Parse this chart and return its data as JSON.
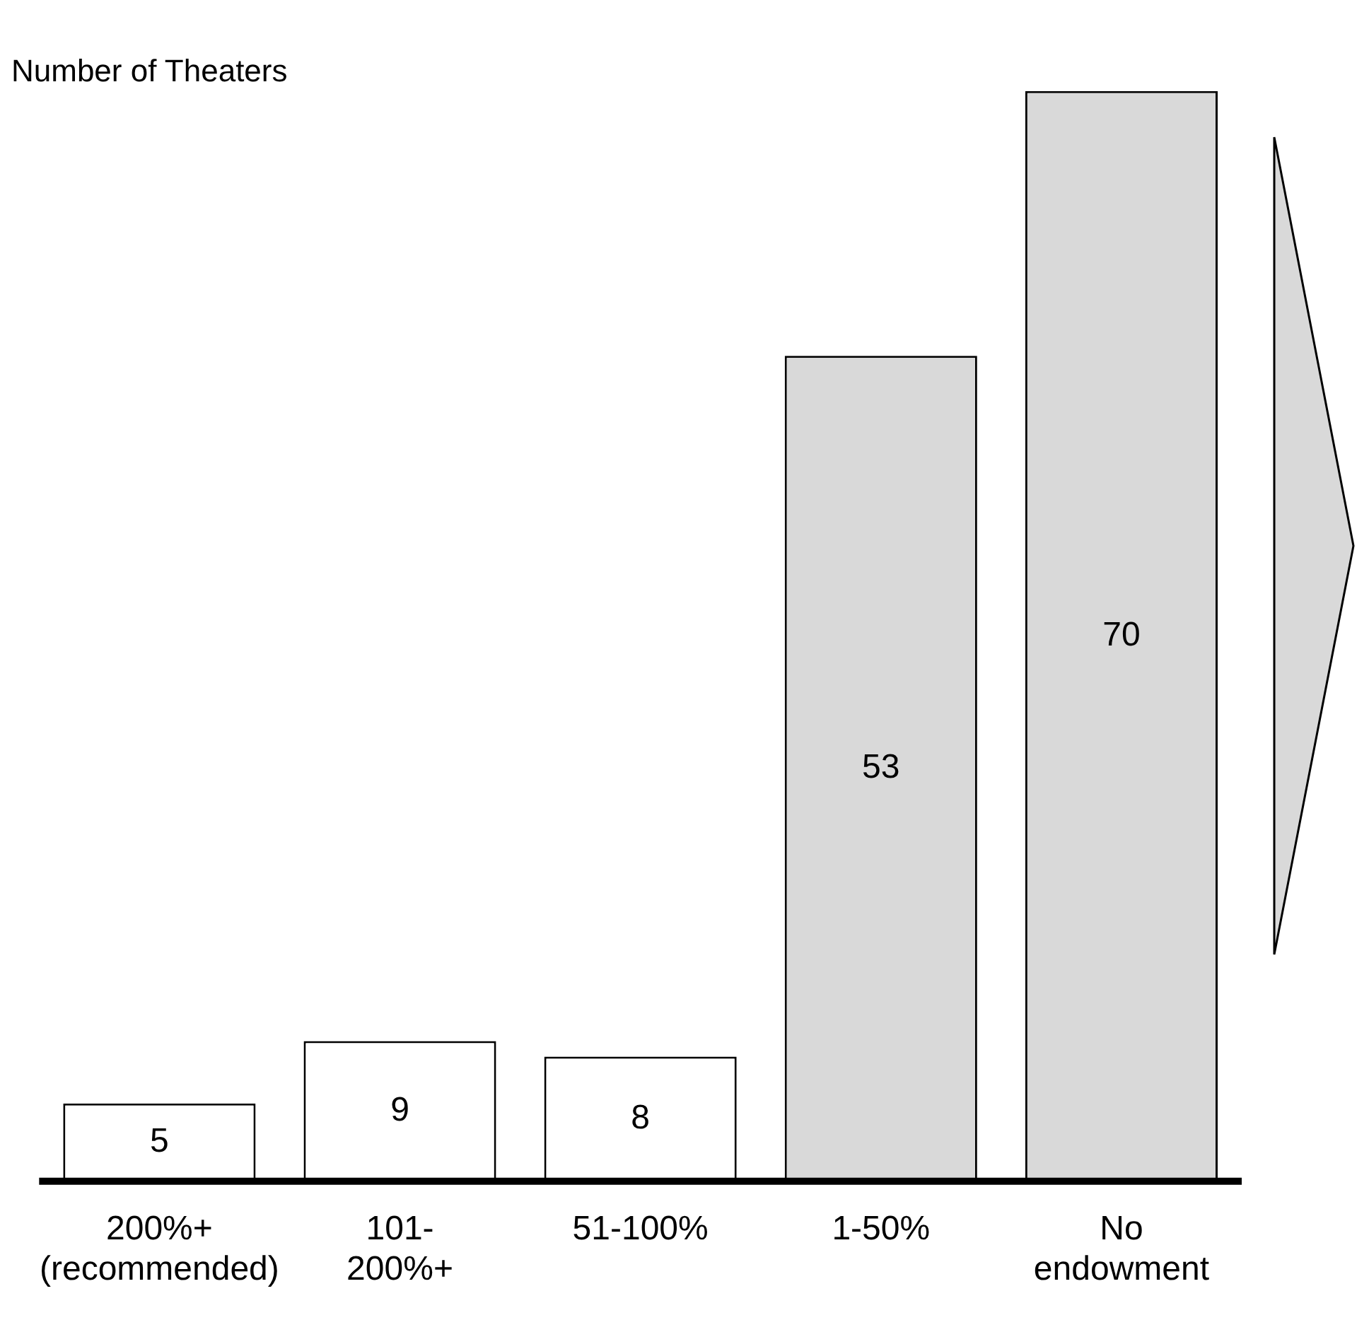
{
  "chart_data": {
    "type": "bar",
    "title": "Number of Theaters",
    "categories": [
      "200%+\n(recommended)",
      "101-\n200%+",
      "51-100%",
      "1-50%",
      "No\nendowment"
    ],
    "values": [
      5,
      9,
      8,
      53,
      70
    ],
    "colors": [
      "#ffffff",
      "#ffffff",
      "#ffffff",
      "#d9d9d9",
      "#d9d9d9"
    ],
    "ylim": [
      0,
      70
    ],
    "data_labels": true,
    "grid": false,
    "legend": false
  }
}
